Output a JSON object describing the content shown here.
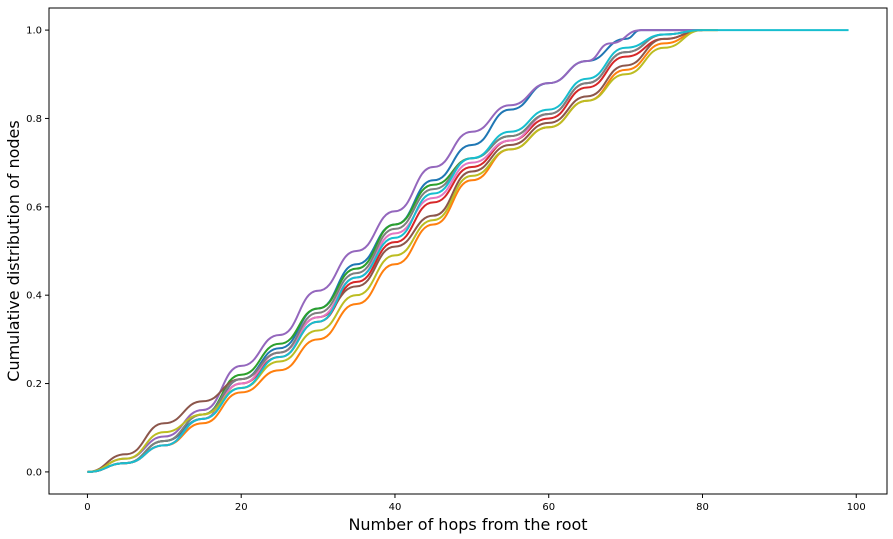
{
  "chart_data": {
    "type": "line",
    "title": "",
    "xlabel": "Number of hops from the root",
    "ylabel": "Cumulative distribution of nodes",
    "xlim": [
      -5,
      104
    ],
    "ylim": [
      -0.05,
      1.05
    ],
    "xticks": [
      0,
      20,
      40,
      60,
      80,
      100
    ],
    "xtick_labels": [
      "0",
      "20",
      "40",
      "60",
      "80",
      "100"
    ],
    "yticks": [
      0.0,
      0.2,
      0.4,
      0.6,
      0.8,
      1.0
    ],
    "ytick_labels": [
      "0.0",
      "0.2",
      "0.4",
      "0.6",
      "0.8",
      "1.0"
    ],
    "grid": false,
    "legend": "none",
    "series": [
      {
        "color": "#1f77b4",
        "points": [
          [
            0,
            0
          ],
          [
            5,
            0.02
          ],
          [
            10,
            0.07
          ],
          [
            15,
            0.12
          ],
          [
            20,
            0.21
          ],
          [
            25,
            0.28
          ],
          [
            30,
            0.37
          ],
          [
            35,
            0.47
          ],
          [
            40,
            0.56
          ],
          [
            45,
            0.66
          ],
          [
            50,
            0.74
          ],
          [
            55,
            0.82
          ],
          [
            60,
            0.88
          ],
          [
            65,
            0.93
          ],
          [
            70,
            0.98
          ],
          [
            72,
            1.0
          ],
          [
            80,
            1.0
          ]
        ]
      },
      {
        "color": "#ff7f0e",
        "points": [
          [
            0,
            0
          ],
          [
            5,
            0.02
          ],
          [
            10,
            0.06
          ],
          [
            15,
            0.11
          ],
          [
            20,
            0.18
          ],
          [
            25,
            0.23
          ],
          [
            30,
            0.3
          ],
          [
            35,
            0.38
          ],
          [
            40,
            0.47
          ],
          [
            45,
            0.56
          ],
          [
            50,
            0.66
          ],
          [
            55,
            0.73
          ],
          [
            60,
            0.78
          ],
          [
            65,
            0.84
          ],
          [
            70,
            0.91
          ],
          [
            75,
            0.97
          ],
          [
            80,
            1.0
          ],
          [
            82,
            1.0
          ]
        ]
      },
      {
        "color": "#2ca02c",
        "points": [
          [
            0,
            0
          ],
          [
            5,
            0.02
          ],
          [
            10,
            0.07
          ],
          [
            15,
            0.13
          ],
          [
            20,
            0.22
          ],
          [
            25,
            0.29
          ],
          [
            30,
            0.37
          ],
          [
            35,
            0.46
          ],
          [
            40,
            0.56
          ],
          [
            45,
            0.65
          ],
          [
            50,
            0.71
          ],
          [
            55,
            0.76
          ],
          [
            60,
            0.81
          ],
          [
            65,
            0.88
          ],
          [
            70,
            0.95
          ],
          [
            75,
            0.99
          ],
          [
            80,
            1.0
          ]
        ]
      },
      {
        "color": "#d62728",
        "points": [
          [
            0,
            0
          ],
          [
            5,
            0.02
          ],
          [
            10,
            0.06
          ],
          [
            15,
            0.12
          ],
          [
            20,
            0.2
          ],
          [
            25,
            0.26
          ],
          [
            30,
            0.34
          ],
          [
            35,
            0.43
          ],
          [
            40,
            0.52
          ],
          [
            45,
            0.61
          ],
          [
            50,
            0.69
          ],
          [
            55,
            0.75
          ],
          [
            60,
            0.8
          ],
          [
            65,
            0.87
          ],
          [
            70,
            0.94
          ],
          [
            75,
            0.98
          ],
          [
            80,
            1.0
          ]
        ]
      },
      {
        "color": "#9467bd",
        "points": [
          [
            0,
            0
          ],
          [
            5,
            0.03
          ],
          [
            10,
            0.08
          ],
          [
            15,
            0.14
          ],
          [
            20,
            0.24
          ],
          [
            25,
            0.31
          ],
          [
            30,
            0.41
          ],
          [
            35,
            0.5
          ],
          [
            40,
            0.59
          ],
          [
            45,
            0.69
          ],
          [
            50,
            0.77
          ],
          [
            55,
            0.83
          ],
          [
            60,
            0.88
          ],
          [
            65,
            0.93
          ],
          [
            68,
            0.97
          ],
          [
            72,
            1.0
          ],
          [
            80,
            1.0
          ]
        ]
      },
      {
        "color": "#8c564b",
        "points": [
          [
            0,
            0
          ],
          [
            5,
            0.04
          ],
          [
            10,
            0.11
          ],
          [
            15,
            0.16
          ],
          [
            20,
            0.21
          ],
          [
            25,
            0.27
          ],
          [
            30,
            0.35
          ],
          [
            35,
            0.42
          ],
          [
            40,
            0.51
          ],
          [
            45,
            0.58
          ],
          [
            50,
            0.68
          ],
          [
            55,
            0.74
          ],
          [
            60,
            0.79
          ],
          [
            65,
            0.85
          ],
          [
            70,
            0.92
          ],
          [
            75,
            0.98
          ],
          [
            80,
            1.0
          ]
        ]
      },
      {
        "color": "#e377c2",
        "points": [
          [
            0,
            0
          ],
          [
            5,
            0.02
          ],
          [
            10,
            0.06
          ],
          [
            15,
            0.12
          ],
          [
            20,
            0.2
          ],
          [
            25,
            0.27
          ],
          [
            30,
            0.35
          ],
          [
            35,
            0.44
          ],
          [
            40,
            0.54
          ],
          [
            45,
            0.62
          ],
          [
            50,
            0.7
          ],
          [
            55,
            0.75
          ],
          [
            60,
            0.81
          ],
          [
            65,
            0.88
          ],
          [
            70,
            0.95
          ],
          [
            75,
            0.99
          ],
          [
            80,
            1.0
          ]
        ]
      },
      {
        "color": "#7f7f7f",
        "points": [
          [
            0,
            0
          ],
          [
            5,
            0.02
          ],
          [
            10,
            0.07
          ],
          [
            15,
            0.13
          ],
          [
            20,
            0.21
          ],
          [
            25,
            0.27
          ],
          [
            30,
            0.36
          ],
          [
            35,
            0.45
          ],
          [
            40,
            0.55
          ],
          [
            45,
            0.64
          ],
          [
            50,
            0.71
          ],
          [
            55,
            0.76
          ],
          [
            60,
            0.81
          ],
          [
            65,
            0.88
          ],
          [
            70,
            0.95
          ],
          [
            75,
            0.99
          ],
          [
            80,
            1.0
          ]
        ]
      },
      {
        "color": "#bcbd22",
        "points": [
          [
            0,
            0
          ],
          [
            5,
            0.03
          ],
          [
            10,
            0.09
          ],
          [
            15,
            0.13
          ],
          [
            20,
            0.19
          ],
          [
            25,
            0.25
          ],
          [
            30,
            0.32
          ],
          [
            35,
            0.4
          ],
          [
            40,
            0.49
          ],
          [
            45,
            0.57
          ],
          [
            50,
            0.67
          ],
          [
            55,
            0.73
          ],
          [
            60,
            0.78
          ],
          [
            65,
            0.84
          ],
          [
            70,
            0.9
          ],
          [
            75,
            0.96
          ],
          [
            80,
            1.0
          ],
          [
            82,
            1.0
          ]
        ]
      },
      {
        "color": "#17becf",
        "points": [
          [
            0,
            0
          ],
          [
            5,
            0.02
          ],
          [
            10,
            0.06
          ],
          [
            15,
            0.12
          ],
          [
            20,
            0.19
          ],
          [
            25,
            0.26
          ],
          [
            30,
            0.34
          ],
          [
            35,
            0.44
          ],
          [
            40,
            0.53
          ],
          [
            45,
            0.63
          ],
          [
            50,
            0.71
          ],
          [
            55,
            0.77
          ],
          [
            60,
            0.82
          ],
          [
            65,
            0.89
          ],
          [
            70,
            0.96
          ],
          [
            75,
            0.99
          ],
          [
            80,
            1.0
          ],
          [
            99,
            1.0
          ]
        ]
      }
    ]
  }
}
